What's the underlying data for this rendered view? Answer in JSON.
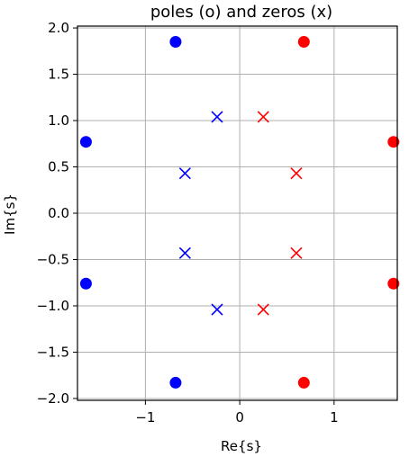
{
  "chart_data": {
    "type": "scatter",
    "title": "poles (o) and zeros (x)",
    "xlabel": "Re{s}",
    "ylabel": "Im{s}",
    "xlim": [
      -1.72,
      1.67
    ],
    "ylim": [
      -2.02,
      2.02
    ],
    "grid": true,
    "xticks": [
      -1,
      0,
      1
    ],
    "xtick_labels": [
      "−1",
      "0",
      "1"
    ],
    "yticks": [
      2.0,
      1.5,
      1.0,
      0.5,
      0.0,
      -0.5,
      -1.0,
      -1.5,
      -2.0
    ],
    "ytick_labels": [
      "2.0",
      "1.5",
      "1.0",
      "0.5",
      "0.0",
      "−0.5",
      "−1.0",
      "−1.5",
      "−2.0"
    ],
    "series": [
      {
        "marker": "o",
        "color": "#0000ff",
        "points": [
          [
            -0.68,
            1.85
          ],
          [
            -1.63,
            0.77
          ],
          [
            -1.63,
            -0.76
          ],
          [
            -0.68,
            -1.83
          ]
        ]
      },
      {
        "marker": "o",
        "color": "#ff0000",
        "points": [
          [
            0.68,
            1.85
          ],
          [
            1.63,
            0.77
          ],
          [
            1.63,
            -0.76
          ],
          [
            0.68,
            -1.83
          ]
        ]
      },
      {
        "marker": "x",
        "color": "#0000ff",
        "points": [
          [
            -0.24,
            1.04
          ],
          [
            -0.58,
            0.43
          ],
          [
            -0.58,
            -0.43
          ],
          [
            -0.24,
            -1.04
          ]
        ]
      },
      {
        "marker": "x",
        "color": "#ff0000",
        "points": [
          [
            0.25,
            1.04
          ],
          [
            0.6,
            0.43
          ],
          [
            0.6,
            -0.43
          ],
          [
            0.25,
            -1.04
          ]
        ]
      }
    ]
  }
}
